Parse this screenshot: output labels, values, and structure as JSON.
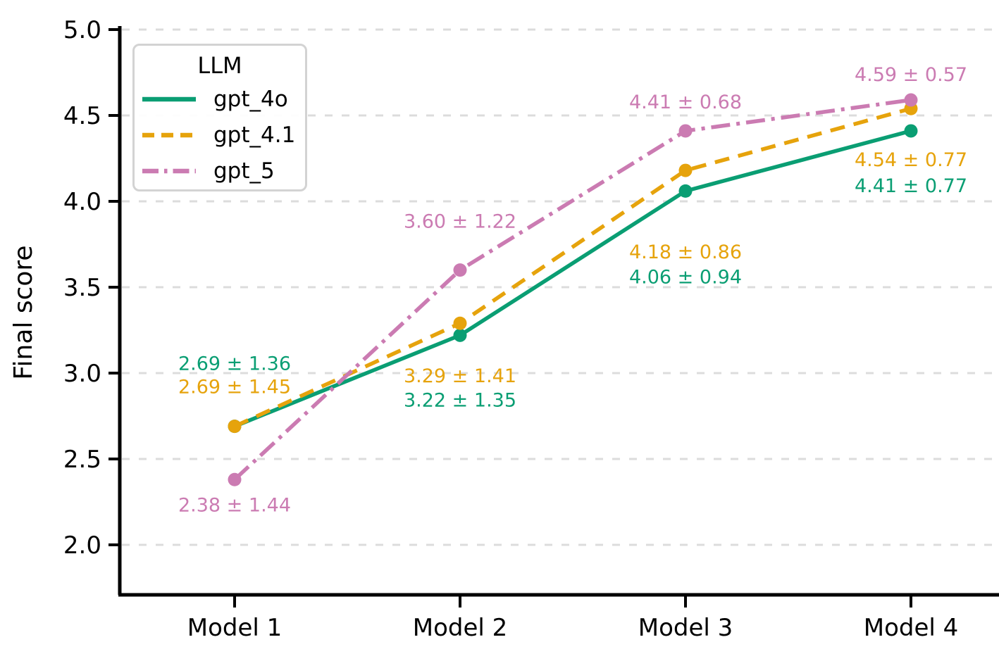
{
  "chart_data": {
    "type": "line",
    "title": "",
    "xlabel": "",
    "ylabel": "Final score",
    "legend_title": "LLM",
    "legend_position": "upper left",
    "grid": "horizontal dashed gridlines",
    "categories": [
      "Model 1",
      "Model 2",
      "Model 3",
      "Model 4"
    ],
    "yticks": [
      "2.0",
      "2.5",
      "3.0",
      "3.5",
      "4.0",
      "4.5",
      "5.0"
    ],
    "ylim": [
      1.71,
      5.0
    ],
    "series": [
      {
        "name": "gpt_4o",
        "color": "#0a9e73",
        "line_style": "solid",
        "values": [
          2.69,
          3.22,
          4.06,
          4.41
        ],
        "stds": [
          1.36,
          1.35,
          0.94,
          0.77
        ],
        "point_labels": [
          "2.69 ± 1.36",
          "3.22 ± 1.35",
          "4.06 ± 0.94",
          "4.41 ± 0.77"
        ],
        "label_dy": [
          -90,
          91,
          121,
          77
        ]
      },
      {
        "name": "gpt_4.1",
        "color": "#e6a30c",
        "line_style": "dashed",
        "values": [
          2.69,
          3.29,
          4.18,
          4.54
        ],
        "stds": [
          1.45,
          1.41,
          0.86,
          0.77
        ],
        "point_labels": [
          "2.69 ± 1.45",
          "3.29 ± 1.41",
          "4.18 ± 0.86",
          "4.54 ± 0.77"
        ],
        "label_dy": [
          -57,
          74,
          115,
          72
        ]
      },
      {
        "name": "gpt_5",
        "color": "#cb7bb2",
        "line_style": "dashdot",
        "values": [
          2.38,
          3.6,
          4.41,
          4.59
        ],
        "stds": [
          1.44,
          1.22,
          0.68,
          0.57
        ],
        "point_labels": [
          "2.38 ± 1.44",
          "3.60 ± 1.22",
          "4.41 ± 0.68",
          "4.59 ± 0.57"
        ],
        "label_dy": [
          35,
          -70,
          -42,
          -37
        ]
      }
    ]
  },
  "colors": {
    "grid": "#dcdcdc",
    "axis": "#000000",
    "tick_label": "#000000",
    "background": "#ffffff"
  }
}
